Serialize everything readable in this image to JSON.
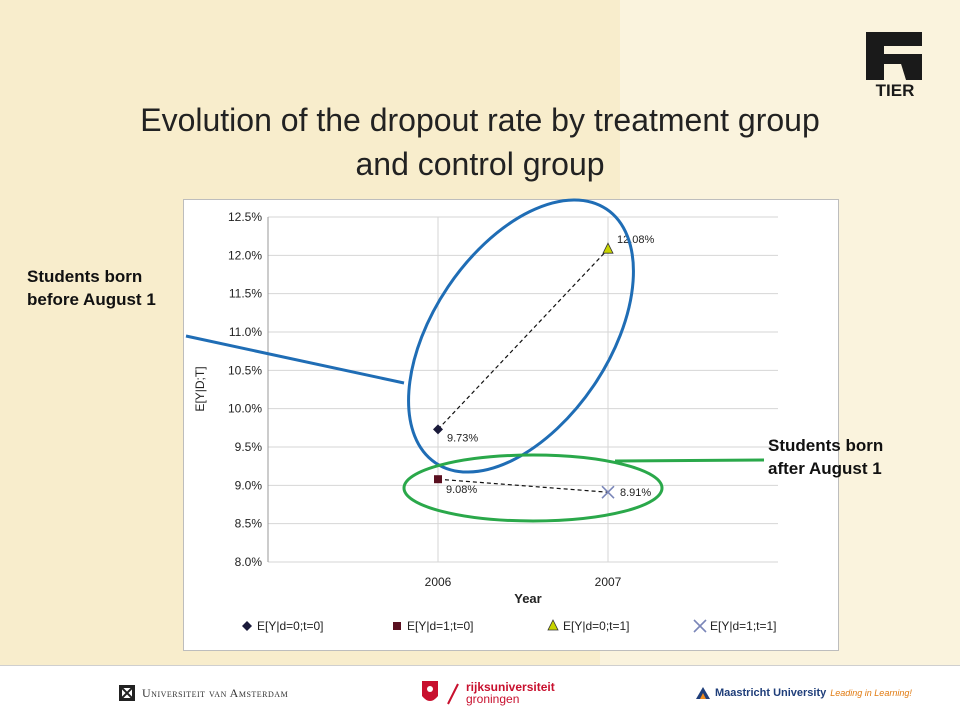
{
  "slide": {
    "title_line1": "Evolution of the dropout rate by treatment group",
    "title_line2": "and control group",
    "logo_text": "TIER",
    "callout_before_line1": "Students born",
    "callout_before_line2": "before August 1",
    "callout_after_line1": "Students born",
    "callout_after_line2": "after August 1",
    "background_color": "#f8edcc",
    "callout_before_color": "#1f6db5",
    "callout_after_color": "#2aa84a"
  },
  "footer": {
    "uva": "Universiteit van Amsterdam",
    "rug_line1": "rijksuniversiteit",
    "rug_line2": "groningen",
    "um": "Maastricht University",
    "um_tagline": "Leading in Learning!"
  },
  "chart_data": {
    "type": "scatter",
    "x_categories": [
      "2006",
      "2007"
    ],
    "xlabel": "Year",
    "ylabel": "E[Y|D;T]",
    "ylim": [
      0.08,
      0.125
    ],
    "yticks": [
      "8.0%",
      "8.5%",
      "9.0%",
      "9.5%",
      "10.0%",
      "10.5%",
      "11.0%",
      "11.5%",
      "12.0%",
      "12.5%"
    ],
    "grid": true,
    "legend_position": "bottom",
    "series": [
      {
        "name": "E[Y|d=0;t=0]",
        "x": "2006",
        "y": 0.0973,
        "label": "9.73%",
        "marker": "diamond",
        "color": "#1a1a3a"
      },
      {
        "name": "E[Y|d=1;t=0]",
        "x": "2006",
        "y": 0.0908,
        "label": "9.08%",
        "marker": "square",
        "color": "#5a1020"
      },
      {
        "name": "E[Y|d=0;t=1]",
        "x": "2007",
        "y": 0.1208,
        "label": "12.08%",
        "marker": "triangle",
        "color": "#c8d400"
      },
      {
        "name": "E[Y|d=1;t=1]",
        "x": "2007",
        "y": 0.0891,
        "label": "8.91%",
        "marker": "x",
        "color": "#7a86b8"
      }
    ],
    "connections": [
      {
        "from": "E[Y|d=0;t=0]",
        "to": "E[Y|d=0;t=1]"
      },
      {
        "from": "E[Y|d=1;t=0]",
        "to": "E[Y|d=1;t=1]"
      }
    ]
  }
}
